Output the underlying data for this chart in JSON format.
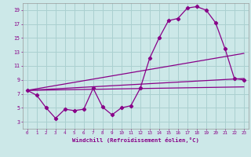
{
  "xlabel": "Windchill (Refroidissement éolien,°C)",
  "xlim": [
    -0.5,
    23.5
  ],
  "ylim": [
    2,
    20
  ],
  "yticks": [
    3,
    5,
    7,
    9,
    11,
    13,
    15,
    17,
    19
  ],
  "xticks": [
    0,
    1,
    2,
    3,
    4,
    5,
    6,
    7,
    8,
    9,
    10,
    11,
    12,
    13,
    14,
    15,
    16,
    17,
    18,
    19,
    20,
    21,
    22,
    23
  ],
  "bg_color": "#cce8e8",
  "grid_color": "#aad0d0",
  "line_color": "#880088",
  "series1_x": [
    0,
    1,
    2,
    3,
    4,
    5,
    6,
    7,
    8,
    9,
    10,
    11,
    12,
    13,
    14,
    15,
    16,
    17,
    18,
    19,
    20,
    21,
    22,
    23
  ],
  "series1_y": [
    7.5,
    6.8,
    5.0,
    3.5,
    4.8,
    4.6,
    4.8,
    7.8,
    5.1,
    4.0,
    5.0,
    5.3,
    7.8,
    12.1,
    15.0,
    17.5,
    17.8,
    19.3,
    19.5,
    19.0,
    17.2,
    13.5,
    9.2,
    9.0
  ],
  "series2_x": [
    0,
    23
  ],
  "series2_y": [
    7.5,
    9.2
  ],
  "series3_x": [
    0,
    23
  ],
  "series3_y": [
    7.5,
    12.8
  ],
  "series4_x": [
    0,
    23
  ],
  "series4_y": [
    7.5,
    8.0
  ]
}
